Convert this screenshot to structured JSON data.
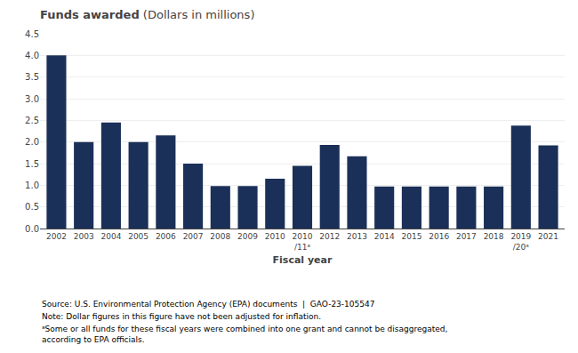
{
  "chart_data": {
    "type": "bar",
    "title": "Funds awarded",
    "subtitle": "(Dollars in millions)",
    "xlabel": "Fiscal year",
    "categories": [
      "2002",
      "2003",
      "2004",
      "2005",
      "2006",
      "2007",
      "2008",
      "2009",
      "2010",
      "2010\n/11ᵃ",
      "2012",
      "2013",
      "2014",
      "2015",
      "2016",
      "2017",
      "2018",
      "2019\n/20ᵃ",
      "2021"
    ],
    "values": [
      4.0,
      2.0,
      2.45,
      2.0,
      2.15,
      1.5,
      0.98,
      0.98,
      1.15,
      1.45,
      1.93,
      1.67,
      0.97,
      0.97,
      0.97,
      0.97,
      0.97,
      2.38,
      1.92
    ],
    "color": "#1B3058",
    "ylim": [
      0,
      4.5
    ],
    "yticks": [
      {
        "value": 0.0,
        "label": "0.0"
      },
      0.5,
      {
        "value": 1.0,
        "label": "1.0"
      },
      1.5,
      {
        "value": 2.0,
        "label": "2.0"
      },
      2.5,
      {
        "value": 3.0,
        "label": "3.0"
      },
      3.5,
      {
        "value": 4.0,
        "label": "4.0"
      },
      4.5
    ],
    "grid": true,
    "annotations": [
      "Source: U.S. Environmental Protection Agency (EPA) documents  |  GAO-23-105547",
      "Note: Dollar figures in this figure have not been adjusted for inflation.",
      "ᵃSome or all funds for these fiscal years were combined into one grant and cannot be disaggregated, according to EPA officials."
    ]
  }
}
